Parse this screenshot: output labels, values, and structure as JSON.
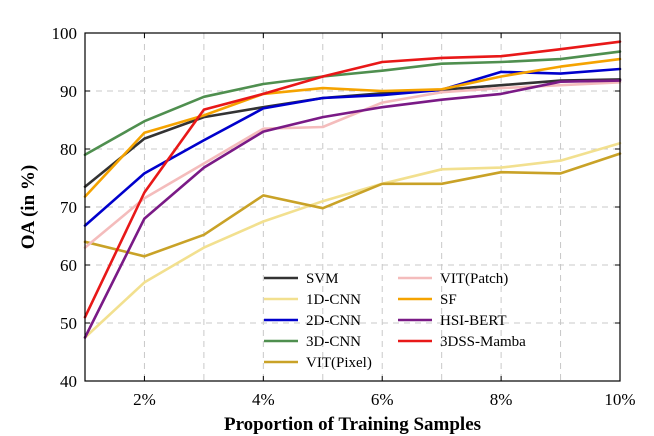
{
  "chart_data": {
    "type": "line",
    "title": "",
    "xlabel": "Proportion of Training Samples",
    "ylabel": "OA (in %)",
    "x": [
      1,
      2,
      3,
      4,
      5,
      6,
      7,
      8,
      9,
      10
    ],
    "xlim": [
      1,
      10
    ],
    "ylim": [
      40,
      100
    ],
    "xticks": [
      2,
      4,
      6,
      8,
      10
    ],
    "xtick_labels": [
      "2%",
      "4%",
      "6%",
      "8%",
      "10%"
    ],
    "yticks": [
      40,
      50,
      60,
      70,
      80,
      90,
      100
    ],
    "ytick_labels": [
      "40",
      "50",
      "60",
      "70",
      "80",
      "90",
      "100"
    ],
    "grid": true,
    "legend_position": "bottom-right",
    "series": [
      {
        "name": "SVM",
        "color": "#333333",
        "values": [
          73.5,
          81.8,
          85.5,
          87.2,
          88.8,
          89.6,
          90.2,
          91.0,
          91.8,
          92.0
        ]
      },
      {
        "name": "1D-CNN",
        "color": "#f2e08f",
        "values": [
          47.5,
          57.0,
          63.0,
          67.5,
          71.0,
          74.0,
          76.5,
          76.8,
          78.0,
          81.0
        ]
      },
      {
        "name": "2D-CNN",
        "color": "#0000cc",
        "values": [
          66.8,
          75.8,
          81.5,
          87.0,
          88.8,
          89.3,
          90.2,
          93.3,
          93.0,
          93.8
        ]
      },
      {
        "name": "3D-CNN",
        "color": "#4f8f4f",
        "values": [
          79.0,
          84.8,
          89.0,
          91.2,
          92.5,
          93.5,
          94.7,
          95.0,
          95.5,
          96.8
        ]
      },
      {
        "name": "VIT(Pixel)",
        "color": "#c9a227",
        "values": [
          64.0,
          61.5,
          65.2,
          72.0,
          69.8,
          74.0,
          74.0,
          76.0,
          75.8,
          79.2
        ]
      },
      {
        "name": "VIT(Patch)",
        "color": "#f4bcbc",
        "values": [
          63.0,
          71.5,
          77.5,
          83.5,
          83.8,
          88.0,
          89.8,
          90.5,
          91.0,
          91.5
        ]
      },
      {
        "name": "SF",
        "color": "#f5a300",
        "values": [
          71.8,
          82.8,
          85.8,
          89.5,
          90.5,
          90.0,
          90.3,
          92.5,
          94.2,
          95.5
        ]
      },
      {
        "name": "HSI-BERT",
        "color": "#7a1a86",
        "values": [
          47.5,
          68.0,
          76.8,
          83.0,
          85.5,
          87.2,
          88.5,
          89.5,
          91.6,
          91.8
        ]
      },
      {
        "name": "3DSS-Mamba",
        "color": "#e81818",
        "values": [
          51.0,
          72.5,
          86.8,
          89.5,
          92.5,
          95.0,
          95.7,
          96.0,
          97.2,
          98.5
        ]
      }
    ],
    "legend_columns": [
      [
        "SVM",
        "1D-CNN",
        "2D-CNN",
        "3D-CNN",
        "VIT(Pixel)"
      ],
      [
        "VIT(Patch)",
        "SF",
        "HSI-BERT",
        "3DSS-Mamba"
      ]
    ],
    "legend_labels": {
      "SVM": "SVM",
      "1D-CNN": "1D-CNN",
      "2D-CNN": "2D-CNN",
      "3D-CNN": "3D-CNN",
      "VIT(Pixel)": "VIT(Pixel)",
      "VIT(Patch)": "VIT(Patch)",
      "SF": "SF",
      "HSI-BERT": "HSI-BERT",
      "3DSS-Mamba": "3DSS-Mamba"
    }
  }
}
